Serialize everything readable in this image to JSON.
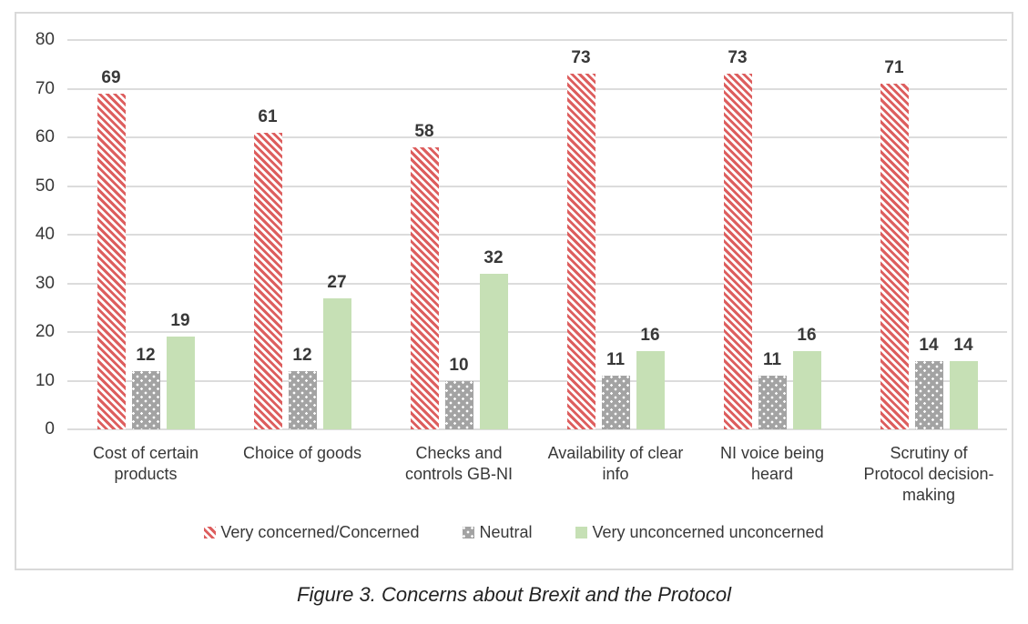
{
  "figure_caption": "Figure 3. Concerns about Brexit and the Protocol",
  "chart_data": {
    "type": "bar",
    "title": "",
    "categories": [
      "Cost of certain products",
      "Choice of goods",
      "Checks and controls GB-NI",
      "Availability of clear info",
      "NI voice being heard",
      "Scrutiny of Protocol decision-making"
    ],
    "series": [
      {
        "name": "Very concerned/Concerned",
        "fill": "red-diagonal-hatch",
        "color": "#dd5e5e",
        "values": [
          69,
          61,
          58,
          73,
          73,
          71
        ]
      },
      {
        "name": "Neutral",
        "fill": "gray-dots",
        "color": "#a3a3a3",
        "values": [
          12,
          12,
          10,
          11,
          11,
          14
        ]
      },
      {
        "name": "Very unconcerned unconcerned",
        "fill": "green-solid",
        "color": "#c6e0b5",
        "values": [
          19,
          27,
          32,
          16,
          16,
          14
        ]
      }
    ],
    "ylim": [
      0,
      80
    ],
    "yticks": [
      0,
      10,
      20,
      30,
      40,
      50,
      60,
      70,
      80
    ],
    "grid": true,
    "data_labels": true,
    "legend_position": "bottom"
  },
  "colors": {
    "gridline": "#dcdcdc",
    "chart_border": "#d9d9d9",
    "text": "#383838",
    "background": "#ffffff"
  }
}
